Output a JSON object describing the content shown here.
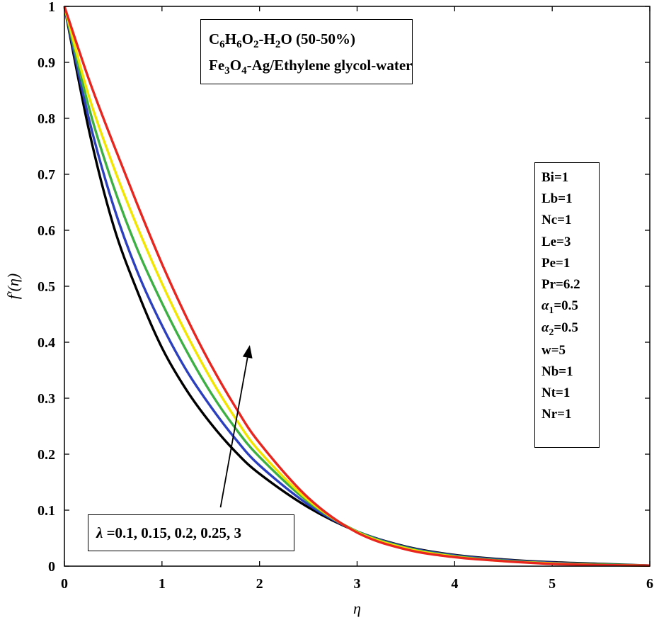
{
  "chart_data": {
    "type": "line",
    "xlabel": "η",
    "ylabel": "f′(η)",
    "xlim": [
      0,
      6
    ],
    "ylim": [
      0,
      1
    ],
    "x_ticks": [
      "0",
      "1",
      "2",
      "3",
      "4",
      "5",
      "6"
    ],
    "y_ticks": [
      "0",
      "0.1",
      "0.2",
      "0.3",
      "0.4",
      "0.5",
      "0.6",
      "0.7",
      "0.8",
      "0.9",
      "1"
    ],
    "grid": false,
    "series": [
      {
        "color": "#000000",
        "x": [
          0,
          0.25,
          0.5,
          0.75,
          1,
          1.25,
          1.5,
          1.75,
          2,
          2.5,
          3,
          3.5,
          4,
          4.5,
          5,
          5.5,
          6
        ],
        "y": [
          1,
          0.78,
          0.61,
          0.49,
          0.39,
          0.315,
          0.255,
          0.205,
          0.165,
          0.105,
          0.062,
          0.035,
          0.02,
          0.012,
          0.007,
          0.004,
          0.001
        ]
      },
      {
        "color": "#2b3fbf",
        "x": [
          0,
          0.25,
          0.5,
          0.75,
          1,
          1.25,
          1.5,
          1.75,
          2,
          2.5,
          3,
          3.5,
          4,
          4.5,
          5,
          5.5,
          6
        ],
        "y": [
          1,
          0.8,
          0.645,
          0.525,
          0.43,
          0.35,
          0.285,
          0.228,
          0.18,
          0.11,
          0.062,
          0.034,
          0.019,
          0.011,
          0.006,
          0.003,
          0.001
        ]
      },
      {
        "color": "#3cb043",
        "x": [
          0,
          0.25,
          0.5,
          0.75,
          1,
          1.25,
          1.5,
          1.75,
          2,
          2.5,
          3,
          3.5,
          4,
          4.5,
          5,
          5.5,
          6
        ],
        "y": [
          1,
          0.82,
          0.68,
          0.565,
          0.47,
          0.385,
          0.31,
          0.247,
          0.195,
          0.115,
          0.062,
          0.033,
          0.018,
          0.01,
          0.005,
          0.003,
          0.001
        ]
      },
      {
        "color": "#f2e600",
        "x": [
          0,
          0.25,
          0.5,
          0.75,
          1,
          1.25,
          1.5,
          1.75,
          2,
          2.5,
          3,
          3.5,
          4,
          4.5,
          5,
          5.5,
          6
        ],
        "y": [
          1,
          0.84,
          0.715,
          0.605,
          0.505,
          0.415,
          0.335,
          0.265,
          0.205,
          0.118,
          0.061,
          0.032,
          0.017,
          0.009,
          0.005,
          0.002,
          0.001
        ]
      },
      {
        "color": "#e8261f",
        "x": [
          0,
          0.25,
          0.5,
          0.75,
          1,
          1.25,
          1.5,
          1.75,
          2,
          2.5,
          3,
          3.5,
          4,
          4.5,
          5,
          5.5,
          6
        ],
        "y": [
          1,
          0.87,
          0.755,
          0.645,
          0.54,
          0.445,
          0.36,
          0.285,
          0.22,
          0.122,
          0.06,
          0.03,
          0.016,
          0.009,
          0.004,
          0.002,
          0.001
        ]
      }
    ],
    "annotations": {
      "fluid_lines": [
        "C6H6O2-H2O (50-50%)",
        "Fe3O4-Ag/Ethylene glycol-water"
      ],
      "parameters": [
        "Bi=1",
        "Lb=1",
        "Nc=1",
        "Le=3",
        "Pe=1",
        "Pr=6.2",
        "α1=0.5",
        "α2=0.5",
        "w=5",
        "Nb=1",
        "Nt=1",
        "Nr=1"
      ],
      "lambda_label": "λ =0.1, 0.15, 0.2, 0.25, 3",
      "arrow_from": [
        1.6,
        0.105
      ],
      "arrow_to": [
        1.9,
        0.395
      ]
    }
  },
  "legend": {
    "fluid": {
      "line1": {
        "c": "C",
        "c_sub": "6",
        "h": "H",
        "h_sub": "6",
        "o": "O",
        "o_sub": "2",
        "dash_h": "-H",
        "h2_sub": "2",
        "rest": "O (50-50%)"
      },
      "line2": {
        "fe": "Fe",
        "fe_sub": "3",
        "o": "O",
        "o_sub": "4",
        "rest": "-Ag/Ethylene glycol-water"
      }
    },
    "params": {
      "bi": "Bi=1",
      "lb": "Lb=1",
      "nc": "Nc=1",
      "le": "Le=3",
      "pe": "Pe=1",
      "pr": "Pr=6.2",
      "alpha": "α",
      "a1_sub": "1",
      "a1_val": "=0.5",
      "a2_sub": "2",
      "a2_val": "=0.5",
      "w": "w=5",
      "nb": "Nb=1",
      "nt": "Nt=1",
      "nr": "Nr=1"
    },
    "lambda": {
      "symbol": "λ",
      "values": " =0.1, 0.15, 0.2, 0.25, 3"
    }
  }
}
